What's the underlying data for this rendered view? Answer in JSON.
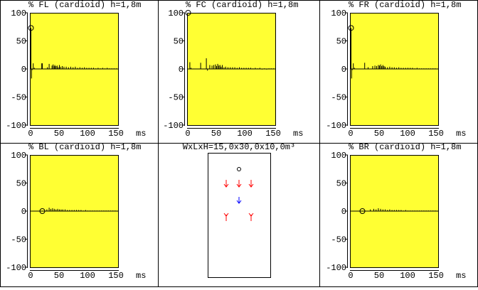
{
  "colors": {
    "plot_bg": "#ffff33",
    "plot_border": "#000000",
    "speaker_front": "#ff0000",
    "speaker_center_sub": "#0000ff"
  },
  "room": {
    "label": "WxLxH=15,0x30,0x10,0m³"
  },
  "chart_data": [
    {
      "type": "bar",
      "title": "% FL (cardioid) h=1,8m",
      "xlabel": "ms",
      "ylabel": "%",
      "xlim": [
        0,
        155
      ],
      "ylim": [
        -100,
        100
      ],
      "xticks": [
        "0",
        "50",
        "100",
        "150"
      ],
      "yticks": [
        "100",
        "50",
        "0",
        "-50",
        "-100"
      ],
      "marker": [
        0,
        73
      ],
      "impulses": [
        [
          0,
          73
        ],
        [
          1,
          -17
        ],
        [
          2,
          -2
        ],
        [
          4,
          10
        ],
        [
          6,
          2
        ],
        [
          19,
          10
        ],
        [
          20,
          10
        ],
        [
          29,
          3
        ],
        [
          32,
          9
        ],
        [
          37,
          6
        ],
        [
          39,
          8
        ],
        [
          41,
          5
        ],
        [
          42,
          7
        ],
        [
          44,
          5
        ],
        [
          46,
          6
        ],
        [
          48,
          3
        ],
        [
          50,
          7
        ],
        [
          52,
          4
        ],
        [
          55,
          5
        ],
        [
          58,
          4
        ],
        [
          62,
          4
        ],
        [
          66,
          3
        ],
        [
          70,
          4
        ],
        [
          74,
          3
        ],
        [
          78,
          4
        ],
        [
          82,
          2
        ],
        [
          86,
          3
        ],
        [
          90,
          2
        ],
        [
          94,
          3
        ],
        [
          98,
          2
        ],
        [
          102,
          2
        ],
        [
          106,
          2
        ],
        [
          110,
          2
        ],
        [
          114,
          1
        ],
        [
          118,
          2
        ],
        [
          122,
          1
        ],
        [
          126,
          2
        ],
        [
          130,
          1
        ],
        [
          134,
          2
        ],
        [
          138,
          1
        ],
        [
          142,
          1
        ],
        [
          146,
          1
        ],
        [
          150,
          1
        ]
      ]
    },
    {
      "type": "bar",
      "title": "% FC (cardioid) h=1,8m",
      "xlabel": "ms",
      "ylabel": "%",
      "xlim": [
        0,
        155
      ],
      "ylim": [
        -100,
        100
      ],
      "xticks": [
        "0",
        "50",
        "100",
        "150"
      ],
      "yticks": [
        "100",
        "50",
        "0",
        "-50",
        "-100"
      ],
      "marker": [
        0,
        100
      ],
      "impulses": [
        [
          3,
          12
        ],
        [
          5,
          2
        ],
        [
          22,
          11
        ],
        [
          32,
          19
        ],
        [
          34,
          -3
        ],
        [
          38,
          7
        ],
        [
          42,
          6
        ],
        [
          45,
          7
        ],
        [
          48,
          8
        ],
        [
          50,
          5
        ],
        [
          52,
          9
        ],
        [
          54,
          6
        ],
        [
          56,
          7
        ],
        [
          58,
          4
        ],
        [
          60,
          7
        ],
        [
          63,
          3
        ],
        [
          66,
          4
        ],
        [
          70,
          3
        ],
        [
          74,
          3
        ],
        [
          78,
          3
        ],
        [
          82,
          3
        ],
        [
          86,
          2
        ],
        [
          90,
          3
        ],
        [
          94,
          2
        ],
        [
          98,
          2
        ],
        [
          102,
          2
        ],
        [
          106,
          2
        ],
        [
          110,
          2
        ],
        [
          114,
          1
        ],
        [
          118,
          2
        ],
        [
          122,
          1
        ],
        [
          126,
          2
        ],
        [
          130,
          -1
        ],
        [
          134,
          1
        ],
        [
          138,
          -1
        ],
        [
          142,
          1
        ],
        [
          146,
          1
        ],
        [
          150,
          1
        ]
      ]
    },
    {
      "type": "bar",
      "title": "% FR (cardioid) h=1,8m",
      "xlabel": "ms",
      "ylabel": "%",
      "xlim": [
        0,
        155
      ],
      "ylim": [
        -100,
        100
      ],
      "xticks": [
        "0",
        "50",
        "100",
        "150"
      ],
      "yticks": [
        "100",
        "50",
        "0",
        "-50",
        "-100"
      ],
      "marker": [
        0,
        73
      ],
      "impulses": [
        [
          0,
          73
        ],
        [
          1,
          -17
        ],
        [
          2,
          -2
        ],
        [
          4,
          10
        ],
        [
          6,
          2
        ],
        [
          24,
          11
        ],
        [
          30,
          3
        ],
        [
          38,
          5
        ],
        [
          42,
          6
        ],
        [
          45,
          5
        ],
        [
          48,
          7
        ],
        [
          50,
          6
        ],
        [
          52,
          8
        ],
        [
          54,
          5
        ],
        [
          56,
          7
        ],
        [
          58,
          5
        ],
        [
          60,
          4
        ],
        [
          64,
          3
        ],
        [
          68,
          4
        ],
        [
          72,
          3
        ],
        [
          76,
          3
        ],
        [
          80,
          2
        ],
        [
          84,
          3
        ],
        [
          88,
          2
        ],
        [
          92,
          2
        ],
        [
          96,
          2
        ],
        [
          100,
          2
        ],
        [
          104,
          2
        ],
        [
          108,
          2
        ],
        [
          112,
          1
        ],
        [
          116,
          2
        ],
        [
          120,
          1
        ],
        [
          124,
          1
        ],
        [
          128,
          1
        ],
        [
          132,
          1
        ],
        [
          136,
          1
        ],
        [
          140,
          1
        ],
        [
          144,
          1
        ],
        [
          148,
          1
        ]
      ]
    },
    {
      "type": "bar",
      "title": "% BL (cardioid) h=1,8m",
      "xlabel": "ms",
      "ylabel": "%",
      "xlim": [
        0,
        155
      ],
      "ylim": [
        -100,
        100
      ],
      "xticks": [
        "0",
        "50",
        "100",
        "150"
      ],
      "yticks": [
        "100",
        "50",
        "0",
        "-50",
        "-100"
      ],
      "marker": [
        20,
        0
      ],
      "impulses": [
        [
          28,
          3
        ],
        [
          32,
          6
        ],
        [
          35,
          4
        ],
        [
          38,
          5
        ],
        [
          41,
          4
        ],
        [
          44,
          3
        ],
        [
          47,
          4
        ],
        [
          50,
          3
        ],
        [
          53,
          3
        ],
        [
          56,
          3
        ],
        [
          60,
          3
        ],
        [
          64,
          2
        ],
        [
          68,
          2
        ],
        [
          72,
          2
        ],
        [
          76,
          2
        ],
        [
          80,
          2
        ],
        [
          84,
          2
        ],
        [
          88,
          2
        ],
        [
          92,
          1
        ],
        [
          96,
          2
        ],
        [
          100,
          1
        ],
        [
          104,
          1
        ],
        [
          108,
          1
        ],
        [
          112,
          1
        ],
        [
          116,
          1
        ],
        [
          120,
          1
        ],
        [
          124,
          1
        ],
        [
          128,
          1
        ],
        [
          132,
          1
        ],
        [
          136,
          1
        ],
        [
          140,
          1
        ],
        [
          144,
          1
        ],
        [
          148,
          1
        ]
      ]
    },
    {
      "type": "bar",
      "title": "% BR (cardioid) h=1,8m",
      "xlabel": "ms",
      "ylabel": "%",
      "xlim": [
        0,
        155
      ],
      "ylim": [
        -100,
        100
      ],
      "xticks": [
        "0",
        "50",
        "100",
        "150"
      ],
      "yticks": [
        "100",
        "50",
        "0",
        "-50",
        "-100"
      ],
      "marker": [
        20,
        0
      ],
      "impulses": [
        [
          34,
          3
        ],
        [
          40,
          4
        ],
        [
          44,
          3
        ],
        [
          48,
          5
        ],
        [
          52,
          4
        ],
        [
          56,
          3
        ],
        [
          60,
          3
        ],
        [
          64,
          2
        ],
        [
          68,
          3
        ],
        [
          72,
          2
        ],
        [
          76,
          2
        ],
        [
          80,
          2
        ],
        [
          84,
          2
        ],
        [
          88,
          2
        ],
        [
          92,
          1
        ],
        [
          96,
          2
        ],
        [
          100,
          1
        ],
        [
          104,
          1
        ],
        [
          108,
          1
        ],
        [
          112,
          1
        ],
        [
          116,
          1
        ],
        [
          120,
          1
        ],
        [
          124,
          1
        ],
        [
          128,
          1
        ],
        [
          132,
          1
        ],
        [
          136,
          1
        ],
        [
          140,
          1
        ],
        [
          144,
          1
        ],
        [
          148,
          1
        ]
      ]
    }
  ]
}
